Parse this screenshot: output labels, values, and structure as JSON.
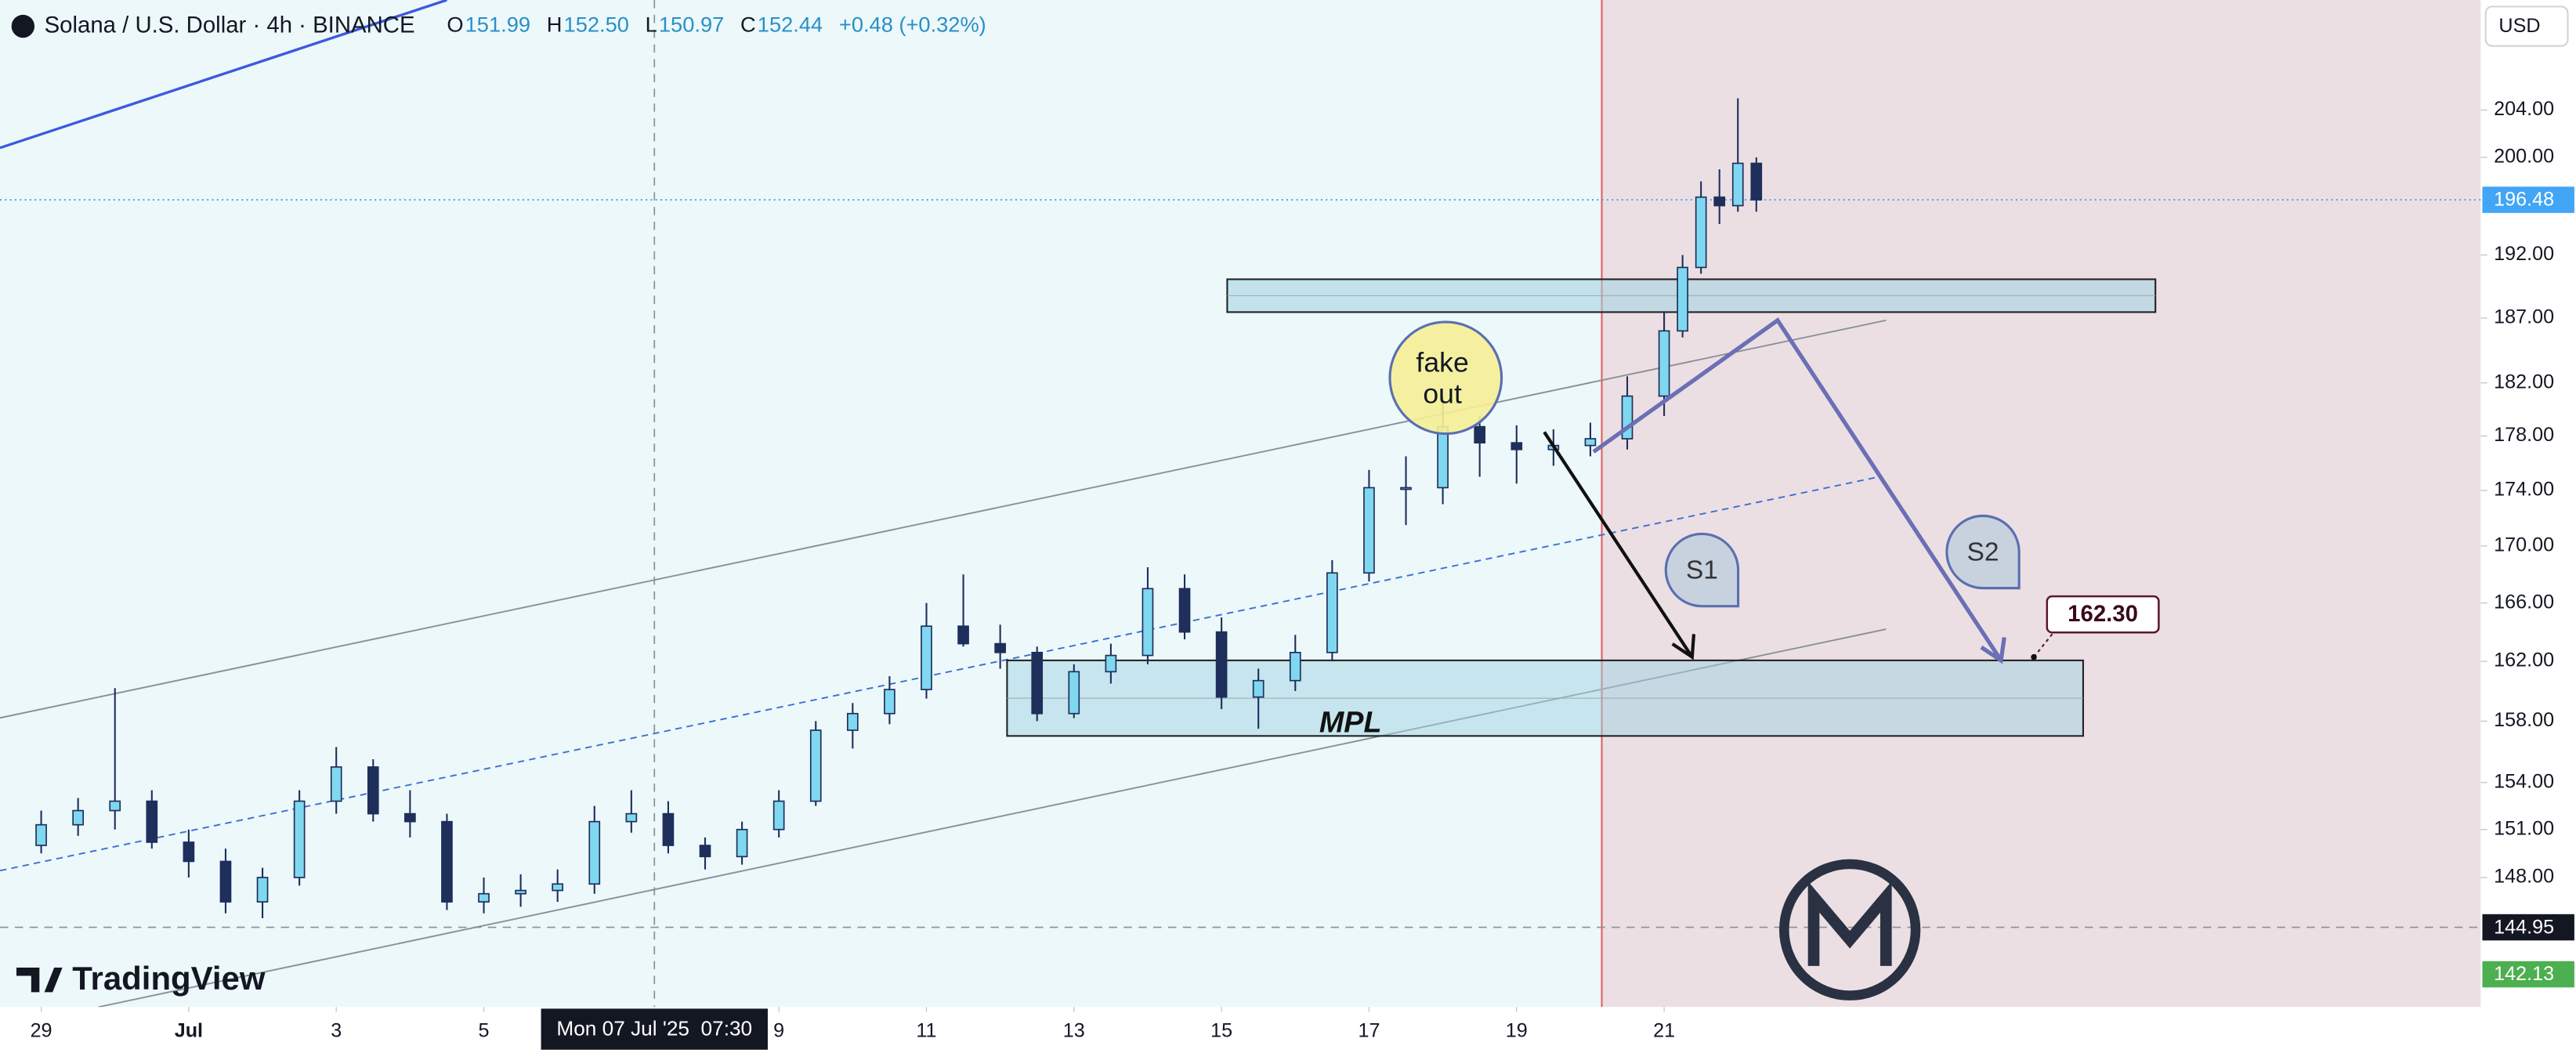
{
  "chart_data": {
    "type": "candlestick",
    "title": "Solana / U.S. Dollar · 4h · BINANCE",
    "ohlc_readout": [
      {
        "key": "O",
        "value": 151.99,
        "label": "151.99"
      },
      {
        "key": "H",
        "value": 152.5,
        "label": "152.50"
      },
      {
        "key": "L",
        "value": 150.97,
        "label": "150.97"
      },
      {
        "key": "C",
        "value": 152.44,
        "label": "152.44"
      }
    ],
    "change": "+0.48 (+0.32%)",
    "currency": "USD",
    "brand": "TradingView",
    "x": [
      "2025-06-29T00:00",
      "2025-06-29T12:00",
      "2025-06-30T00:00",
      "2025-06-30T12:00",
      "2025-07-01T00:00",
      "2025-07-01T12:00",
      "2025-07-02T00:00",
      "2025-07-02T12:00",
      "2025-07-03T00:00",
      "2025-07-03T12:00",
      "2025-07-04T00:00",
      "2025-07-04T12:00",
      "2025-07-05T00:00",
      "2025-07-05T12:00",
      "2025-07-06T00:00",
      "2025-07-06T12:00",
      "2025-07-07T00:00",
      "2025-07-07T12:00",
      "2025-07-08T00:00",
      "2025-07-08T12:00",
      "2025-07-09T00:00",
      "2025-07-09T12:00",
      "2025-07-10T00:00",
      "2025-07-10T12:00",
      "2025-07-11T00:00",
      "2025-07-11T12:00",
      "2025-07-12T00:00",
      "2025-07-12T12:00",
      "2025-07-13T00:00",
      "2025-07-13T12:00",
      "2025-07-14T00:00",
      "2025-07-14T12:00",
      "2025-07-15T00:00",
      "2025-07-15T12:00",
      "2025-07-16T00:00",
      "2025-07-16T12:00",
      "2025-07-17T00:00",
      "2025-07-17T12:00",
      "2025-07-18T00:00",
      "2025-07-18T12:00",
      "2025-07-19T00:00",
      "2025-07-19T12:00",
      "2025-07-20T00:00",
      "2025-07-20T12:00",
      "2025-07-21T00:00",
      "2025-07-21T06:00",
      "2025-07-21T12:00",
      "2025-07-21T18:00",
      "2025-07-22T00:00",
      "2025-07-22T06:00"
    ],
    "open": [
      150.0,
      151.3,
      152.2,
      152.8,
      150.2,
      149.0,
      146.5,
      148.0,
      152.8,
      155.0,
      152.0,
      151.5,
      146.5,
      147.0,
      147.2,
      147.6,
      151.5,
      152.0,
      150.0,
      149.3,
      151.0,
      152.8,
      157.4,
      158.5,
      160.1,
      164.4,
      163.2,
      162.6,
      158.5,
      161.3,
      162.4,
      167.0,
      164.0,
      159.6,
      160.7,
      162.6,
      168.1,
      174.2,
      174.2,
      178.7,
      177.5,
      177.0,
      177.3,
      177.8,
      181.0,
      186.0,
      191.0,
      196.7,
      196.0,
      199.5
    ],
    "high": [
      152.2,
      153.0,
      160.2,
      153.5,
      151.0,
      149.8,
      148.6,
      153.5,
      156.3,
      155.5,
      153.5,
      152.0,
      148.0,
      148.2,
      148.5,
      152.5,
      153.5,
      152.8,
      150.5,
      151.5,
      153.5,
      158.0,
      159.2,
      161.0,
      166.0,
      168.0,
      164.5,
      163.0,
      161.8,
      163.2,
      168.5,
      168.0,
      165.0,
      161.5,
      163.8,
      169.0,
      175.5,
      176.5,
      181.0,
      179.5,
      178.8,
      178.5,
      179.0,
      182.5,
      187.5,
      192.0,
      198.0,
      199.0,
      205.0,
      200.0
    ],
    "low": [
      149.5,
      150.6,
      151.0,
      149.8,
      148.0,
      145.8,
      145.5,
      147.5,
      152.0,
      151.5,
      150.5,
      146.0,
      145.8,
      146.2,
      146.5,
      147.0,
      150.8,
      149.5,
      148.5,
      148.8,
      150.5,
      152.5,
      156.2,
      157.8,
      159.5,
      163.0,
      161.5,
      158.0,
      158.2,
      160.5,
      161.8,
      163.5,
      158.8,
      157.5,
      160.0,
      162.0,
      167.5,
      171.5,
      173.0,
      175.0,
      174.5,
      175.8,
      176.5,
      177.0,
      179.5,
      185.5,
      190.5,
      194.5,
      195.5,
      195.5
    ],
    "close": [
      151.3,
      152.2,
      152.8,
      150.2,
      149.0,
      146.5,
      148.0,
      152.8,
      155.0,
      152.0,
      151.5,
      146.5,
      147.0,
      147.2,
      147.6,
      151.5,
      152.0,
      150.0,
      149.3,
      151.0,
      152.8,
      157.4,
      158.5,
      160.1,
      164.4,
      163.2,
      162.6,
      158.5,
      161.3,
      162.4,
      167.0,
      164.0,
      159.6,
      160.7,
      162.6,
      168.1,
      174.2,
      174.2,
      178.7,
      177.5,
      177.0,
      177.3,
      177.8,
      181.0,
      186.0,
      191.0,
      196.7,
      196.0,
      199.5,
      196.48
    ],
    "up_color": "#7fd8f0",
    "down_color": "#1f2f5c",
    "border_color": "#1f2f5c",
    "log_scale": true,
    "xlim": [
      "2025-06-28T10:36",
      "2025-08-01T01:40"
    ],
    "ylim": [
      140.2,
      213.6
    ],
    "yticks": [
      {
        "value": 148,
        "label": "148.00"
      },
      {
        "value": 151,
        "label": "151.00"
      },
      {
        "value": 154,
        "label": "154.00"
      },
      {
        "value": 158,
        "label": "158.00"
      },
      {
        "value": 162,
        "label": "162.00"
      },
      {
        "value": 166,
        "label": "166.00"
      },
      {
        "value": 170,
        "label": "170.00"
      },
      {
        "value": 174,
        "label": "174.00"
      },
      {
        "value": 178,
        "label": "178.00"
      },
      {
        "value": 182,
        "label": "182.00"
      },
      {
        "value": 187,
        "label": "187.00"
      },
      {
        "value": 192,
        "label": "192.00"
      },
      {
        "value": 200,
        "label": "200.00"
      },
      {
        "value": 204,
        "label": "204.00"
      }
    ],
    "xticks": [
      {
        "value": "2025-06-29T00:00",
        "label": "29"
      },
      {
        "value": "2025-07-01T00:00",
        "label": "Jul"
      },
      {
        "value": "2025-07-03T00:00",
        "label": "3"
      },
      {
        "value": "2025-07-05T00:00",
        "label": "5"
      },
      {
        "value": "2025-07-09T00:00",
        "label": "9"
      },
      {
        "value": "2025-07-11T00:00",
        "label": "11"
      },
      {
        "value": "2025-07-13T00:00",
        "label": "13"
      },
      {
        "value": "2025-07-15T00:00",
        "label": "15"
      },
      {
        "value": "2025-07-17T00:00",
        "label": "17"
      },
      {
        "value": "2025-07-19T00:00",
        "label": "19"
      },
      {
        "value": "2025-07-21T00:00",
        "label": "21"
      }
    ],
    "price_markers": [
      {
        "value": 196.48,
        "label": "196.48",
        "color": "#42a5f5"
      },
      {
        "value": 144.95,
        "label": "144.95",
        "color": "#131722"
      },
      {
        "value": 142.13,
        "label": "142.13",
        "color": "#4caf50"
      }
    ],
    "crosshair": {
      "x": "2025-07-07T07:30",
      "label": "Mon 07 Jul '25  07:30",
      "price": 144.95
    },
    "annotations": {
      "fake_out": "fake out",
      "s1": "S1",
      "s2": "S2",
      "target": "162.30",
      "zone": "MPL"
    }
  }
}
